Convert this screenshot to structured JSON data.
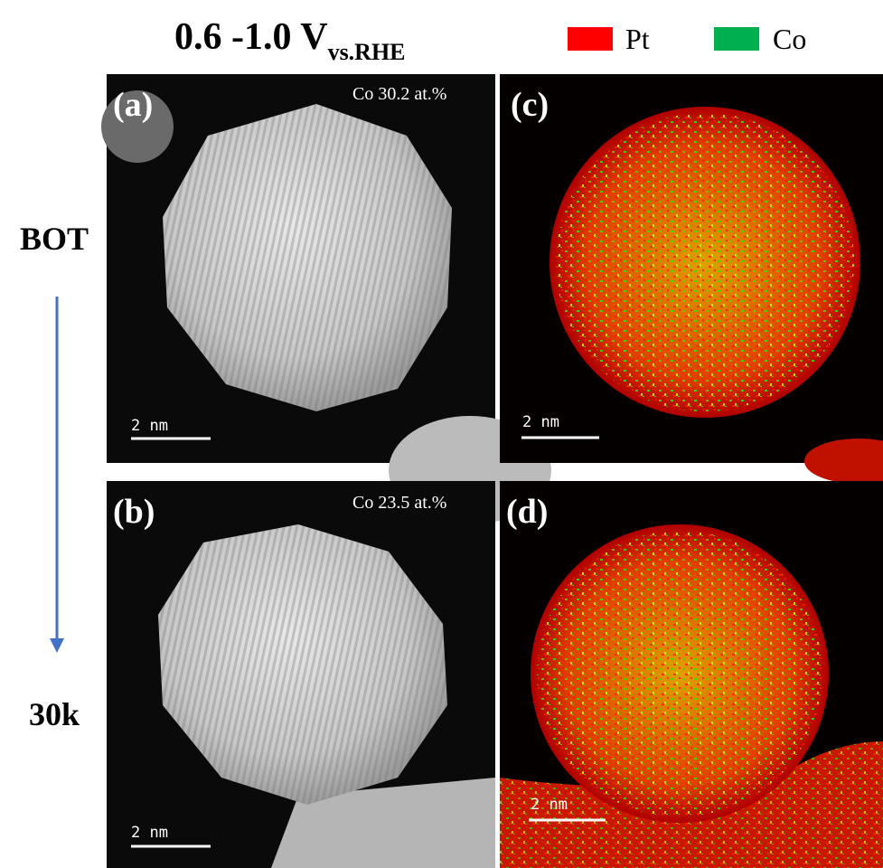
{
  "header": {
    "title": "0.6 -1.0 V",
    "subscript": "vs.RHE"
  },
  "legend": [
    {
      "label": "Pt",
      "color": "#ff0000"
    },
    {
      "label": "Co",
      "color": "#00b050"
    }
  ],
  "row_labels": {
    "start": "BOT",
    "end": "30k"
  },
  "panels": [
    {
      "label": "(a)",
      "annotation": "Co 30.2 at.%",
      "scale_bar": "2 nm"
    },
    {
      "label": "(b)",
      "annotation": "Co 23.5 at.%",
      "scale_bar": "2 nm"
    },
    {
      "label": "(c)",
      "scale_bar": "2 nm"
    },
    {
      "label": "(d)",
      "scale_bar": "2 nm"
    }
  ]
}
